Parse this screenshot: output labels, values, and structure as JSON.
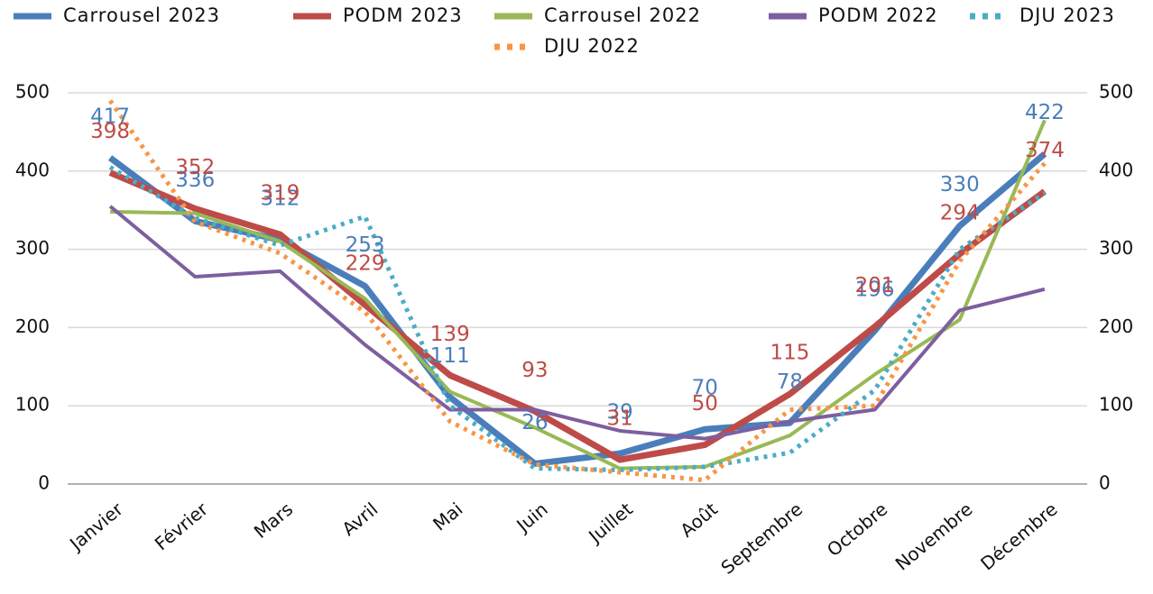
{
  "chart_data": {
    "type": "line",
    "categories": [
      "Janvier",
      "Février",
      "Mars",
      "Avril",
      "Mai",
      "Juin",
      "Juillet",
      "Août",
      "Septembre",
      "Octobre",
      "Novembre",
      "Décembre"
    ],
    "series": [
      {
        "name": "Carrousel 2023",
        "color": "#4a7ebb",
        "line_style": "solid",
        "data_labels": true,
        "values": [
          417,
          336,
          312,
          253,
          111,
          26,
          39,
          70,
          78,
          196,
          330,
          422
        ]
      },
      {
        "name": "PODM 2023",
        "color": "#be4b48",
        "line_style": "solid",
        "data_labels": true,
        "values": [
          398,
          352,
          319,
          229,
          139,
          93,
          31,
          50,
          115,
          201,
          294,
          374
        ]
      },
      {
        "name": "Carrousel 2022",
        "color": "#98b954",
        "line_style": "solid",
        "data_labels": false,
        "values": [
          348,
          346,
          310,
          237,
          118,
          72,
          20,
          22,
          62,
          140,
          210,
          465
        ]
      },
      {
        "name": "PODM 2022",
        "color": "#7d5fa0",
        "line_style": "solid",
        "data_labels": false,
        "values": [
          355,
          265,
          272,
          178,
          95,
          95,
          68,
          58,
          80,
          95,
          222,
          249
        ]
      },
      {
        "name": "DJU 2023",
        "color": "#4bacc6",
        "line_style": "dotted",
        "data_labels": false,
        "axis": "y2",
        "values": [
          405,
          340,
          305,
          342,
          100,
          20,
          18,
          22,
          40,
          120,
          300,
          372
        ]
      },
      {
        "name": "DJU 2022",
        "color": "#f79646",
        "line_style": "dotted",
        "data_labels": false,
        "axis": "y2",
        "values": [
          490,
          335,
          295,
          220,
          80,
          25,
          15,
          5,
          95,
          100,
          285,
          410
        ]
      }
    ],
    "ylim": [
      0,
      500
    ],
    "yticks": [
      0,
      100,
      200,
      300,
      400,
      500
    ],
    "y2lim": [
      0,
      500
    ],
    "y2ticks": [
      0,
      100,
      200,
      300,
      400,
      500
    ],
    "grid": true,
    "legend": "top"
  }
}
